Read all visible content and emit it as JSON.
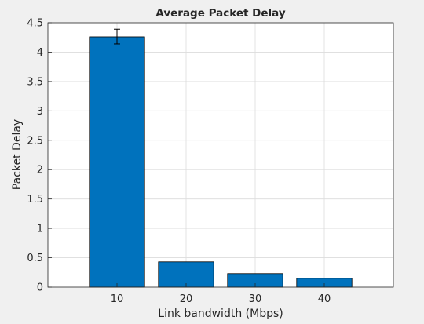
{
  "chart_data": {
    "type": "bar",
    "title": "Average Packet Delay",
    "xlabel": "Link bandwidth (Mbps)",
    "ylabel": "Packet Delay",
    "categories": [
      "10",
      "20",
      "30",
      "40"
    ],
    "series": [
      {
        "values": [
          4.26,
          0.43,
          0.23,
          0.15
        ],
        "error": [
          [
            4.14,
            4.39
          ],
          null,
          null,
          null
        ]
      }
    ],
    "xlim": [
      0,
      50
    ],
    "x_positions": [
      10,
      20,
      30,
      40
    ],
    "ylim": [
      0,
      4.5
    ],
    "yticks": [
      "0",
      "0.5",
      "1",
      "1.5",
      "2",
      "2.5",
      "3",
      "3.5",
      "4",
      "4.5"
    ],
    "grid": true,
    "colors": {
      "bar": "#0072BD",
      "bar_edge": "#000000",
      "grid": "#dcdcdc",
      "axes_bg": "#ffffff",
      "figure_bg": "#f0f0f0",
      "axis": "#262626"
    }
  }
}
